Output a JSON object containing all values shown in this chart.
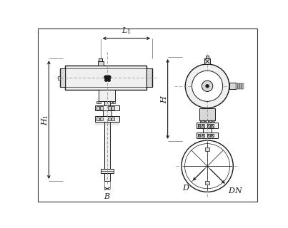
{
  "bg_color": "#ffffff",
  "line_color": "#1a1a1a",
  "dash_color": "#888888",
  "dim_color": "#1a1a1a",
  "fill_light": "#f0f0f0",
  "fill_mid": "#d8d8d8",
  "fill_dark": "#b8b8b8",
  "fig_width": 4.03,
  "fig_height": 3.2,
  "dpi": 100,
  "labels": {
    "L1": "$L_1$",
    "H1": "$H_1$",
    "H": "$H$",
    "B": "$B$",
    "D": "$D$",
    "DN": "$DN$"
  }
}
